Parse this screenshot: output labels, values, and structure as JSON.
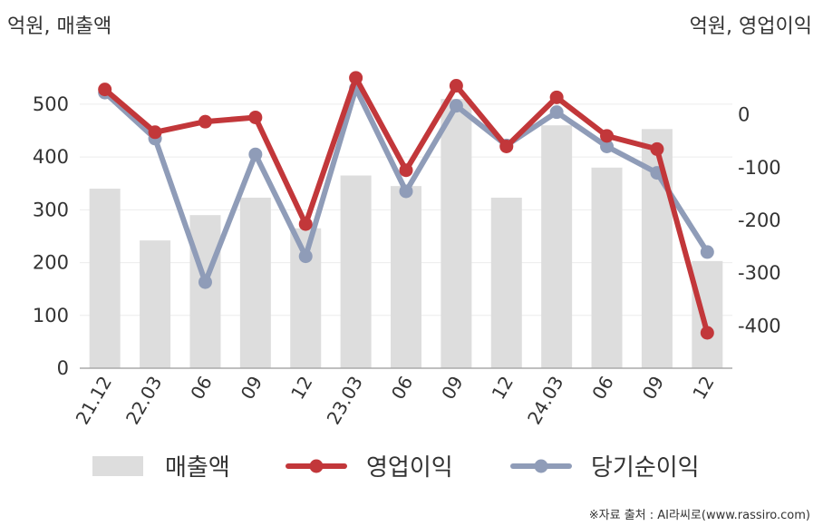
{
  "chart_data": {
    "type": "bar+line",
    "left_unit_label": "억원, 매출액",
    "right_unit_label": "억원, 영업이익",
    "categories": [
      "21.12",
      "22.03",
      "06",
      "09",
      "12",
      "23.03",
      "06",
      "09",
      "12",
      "24.03",
      "06",
      "09",
      "12"
    ],
    "left_axis": {
      "range": [
        0,
        560
      ],
      "ticks": [
        0,
        100,
        200,
        300,
        400,
        500
      ]
    },
    "right_axis": {
      "range": [
        -480,
        80
      ],
      "ticks": [
        0,
        -100,
        -200,
        -300,
        -400
      ]
    },
    "bar_series": {
      "name": "매출액",
      "axis": "left",
      "color": "#dddddd",
      "values": [
        340,
        242,
        290,
        323,
        265,
        365,
        345,
        510,
        323,
        460,
        380,
        453,
        203
      ]
    },
    "line_series": [
      {
        "name": "영업이익",
        "axis": "right",
        "color": "#c2373a",
        "values": [
          48,
          -33,
          -13,
          -5,
          -207,
          70,
          -105,
          55,
          -60,
          33,
          -40,
          -65,
          -413
        ]
      },
      {
        "name": "당기순이익",
        "axis": "right",
        "color": "#8f9cb8",
        "values": [
          42,
          -45,
          -317,
          -75,
          -268,
          50,
          -145,
          17,
          -58,
          5,
          -60,
          -110,
          -260
        ]
      }
    ],
    "legend": {
      "position": "bottom",
      "items": [
        "매출액",
        "영업이익",
        "당기순이익"
      ]
    },
    "source_text": "※자료 출처 : AI라씨로(www.rassiro.com)"
  }
}
